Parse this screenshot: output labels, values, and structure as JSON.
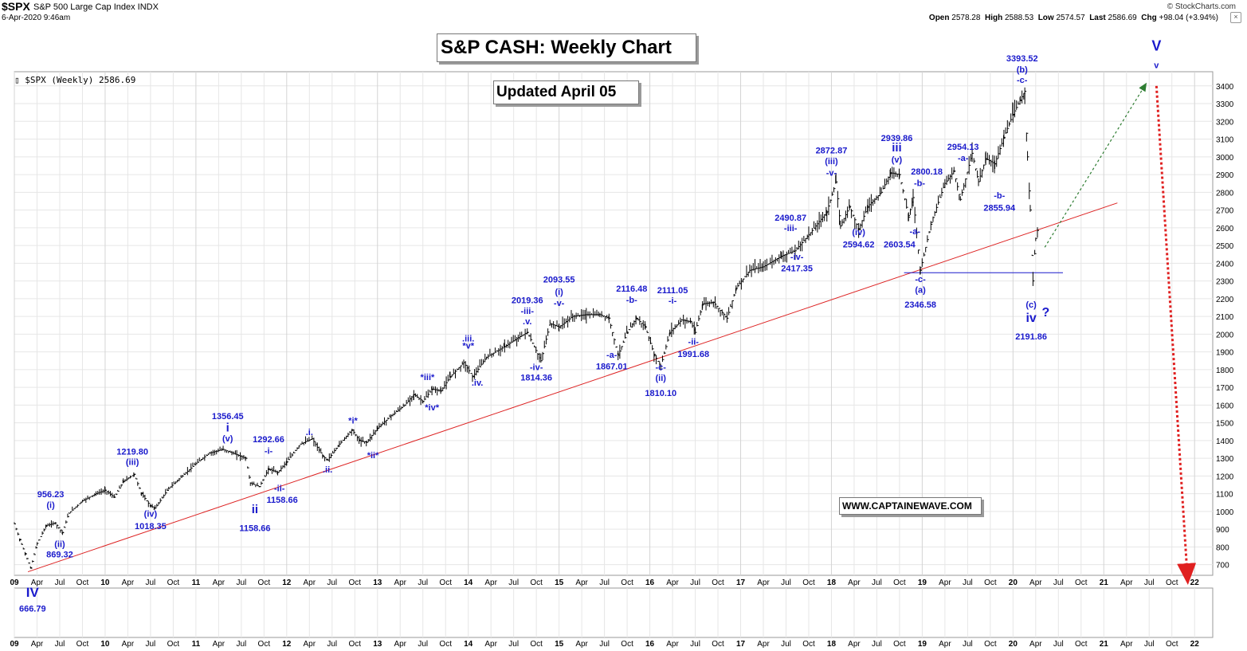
{
  "header": {
    "symbol": "$SPX",
    "name": "S&P 500 Large Cap Index INDX",
    "date": "6-Apr-2020 9:46am",
    "credit": "© StockCharts.com",
    "quote": {
      "open_label": "Open",
      "open": "2578.28",
      "high_label": "High",
      "high": "2588.53",
      "low_label": "Low",
      "low": "2574.57",
      "last_label": "Last",
      "last": "2586.69",
      "chg_label": "Chg",
      "chg": "+98.04 (+3.94%)"
    },
    "close_glyph": "×"
  },
  "legend": "$SPX (Weekly) 2586.69",
  "boxes": {
    "title": "S&P CASH: Weekly Chart",
    "updated": "Updated April 05",
    "website": "WWW.CAPTAINEWAVE.COM"
  },
  "colors": {
    "price": "#000000",
    "wave_label": "#1a1acc",
    "trendline": "#dd2222",
    "projection_up": "#2e7d32",
    "projection_down": "#e02020",
    "support": "#1a1acc",
    "grid": "#e6e6e6"
  },
  "chart_data": {
    "type": "ohlc",
    "series_name": "$SPX (Weekly)",
    "title": "S&P CASH: Weekly Chart",
    "ylim": [
      640,
      3480
    ],
    "y_ticks": [
      700,
      800,
      900,
      1000,
      1100,
      1200,
      1300,
      1400,
      1500,
      1600,
      1700,
      1800,
      1900,
      2000,
      2100,
      2200,
      2300,
      2400,
      2500,
      2600,
      2700,
      2800,
      2900,
      3000,
      3100,
      3200,
      3300,
      3400
    ],
    "xlim": [
      2009.0,
      2022.2
    ],
    "x_ticks": [
      {
        "t": 2009.0,
        "label": "09",
        "year": true
      },
      {
        "t": 2009.25,
        "label": "Apr"
      },
      {
        "t": 2009.5,
        "label": "Jul"
      },
      {
        "t": 2009.75,
        "label": "Oct"
      },
      {
        "t": 2010.0,
        "label": "10",
        "year": true
      },
      {
        "t": 2010.25,
        "label": "Apr"
      },
      {
        "t": 2010.5,
        "label": "Jul"
      },
      {
        "t": 2010.75,
        "label": "Oct"
      },
      {
        "t": 2011.0,
        "label": "11",
        "year": true
      },
      {
        "t": 2011.25,
        "label": "Apr"
      },
      {
        "t": 2011.5,
        "label": "Jul"
      },
      {
        "t": 2011.75,
        "label": "Oct"
      },
      {
        "t": 2012.0,
        "label": "12",
        "year": true
      },
      {
        "t": 2012.25,
        "label": "Apr"
      },
      {
        "t": 2012.5,
        "label": "Jul"
      },
      {
        "t": 2012.75,
        "label": "Oct"
      },
      {
        "t": 2013.0,
        "label": "13",
        "year": true
      },
      {
        "t": 2013.25,
        "label": "Apr"
      },
      {
        "t": 2013.5,
        "label": "Jul"
      },
      {
        "t": 2013.75,
        "label": "Oct"
      },
      {
        "t": 2014.0,
        "label": "14",
        "year": true
      },
      {
        "t": 2014.25,
        "label": "Apr"
      },
      {
        "t": 2014.5,
        "label": "Jul"
      },
      {
        "t": 2014.75,
        "label": "Oct"
      },
      {
        "t": 2015.0,
        "label": "15",
        "year": true
      },
      {
        "t": 2015.25,
        "label": "Apr"
      },
      {
        "t": 2015.5,
        "label": "Jul"
      },
      {
        "t": 2015.75,
        "label": "Oct"
      },
      {
        "t": 2016.0,
        "label": "16",
        "year": true
      },
      {
        "t": 2016.25,
        "label": "Apr"
      },
      {
        "t": 2016.5,
        "label": "Jul"
      },
      {
        "t": 2016.75,
        "label": "Oct"
      },
      {
        "t": 2017.0,
        "label": "17",
        "year": true
      },
      {
        "t": 2017.25,
        "label": "Apr"
      },
      {
        "t": 2017.5,
        "label": "Jul"
      },
      {
        "t": 2017.75,
        "label": "Oct"
      },
      {
        "t": 2018.0,
        "label": "18",
        "year": true
      },
      {
        "t": 2018.25,
        "label": "Apr"
      },
      {
        "t": 2018.5,
        "label": "Jul"
      },
      {
        "t": 2018.75,
        "label": "Oct"
      },
      {
        "t": 2019.0,
        "label": "19",
        "year": true
      },
      {
        "t": 2019.25,
        "label": "Apr"
      },
      {
        "t": 2019.5,
        "label": "Jul"
      },
      {
        "t": 2019.75,
        "label": "Oct"
      },
      {
        "t": 2020.0,
        "label": "20",
        "year": true
      },
      {
        "t": 2020.25,
        "label": "Apr"
      },
      {
        "t": 2020.5,
        "label": "Jul"
      },
      {
        "t": 2020.75,
        "label": "Oct"
      },
      {
        "t": 2021.0,
        "label": "21",
        "year": true
      },
      {
        "t": 2021.25,
        "label": "Apr"
      },
      {
        "t": 2021.5,
        "label": "Jul"
      },
      {
        "t": 2021.75,
        "label": "Oct"
      },
      {
        "t": 2022.0,
        "label": "22",
        "year": true
      }
    ],
    "price_path": [
      [
        2009.0,
        930
      ],
      [
        2009.06,
        840
      ],
      [
        2009.12,
        760
      ],
      [
        2009.18,
        680
      ],
      [
        2009.25,
        820
      ],
      [
        2009.35,
        920
      ],
      [
        2009.45,
        935
      ],
      [
        2009.53,
        880
      ],
      [
        2009.6,
        990
      ],
      [
        2009.75,
        1060
      ],
      [
        2009.9,
        1100
      ],
      [
        2010.0,
        1120
      ],
      [
        2010.1,
        1080
      ],
      [
        2010.2,
        1170
      ],
      [
        2010.32,
        1210
      ],
      [
        2010.4,
        1100
      ],
      [
        2010.5,
        1030
      ],
      [
        2010.55,
        1020
      ],
      [
        2010.7,
        1130
      ],
      [
        2010.85,
        1200
      ],
      [
        2011.0,
        1270
      ],
      [
        2011.15,
        1330
      ],
      [
        2011.3,
        1350
      ],
      [
        2011.45,
        1320
      ],
      [
        2011.55,
        1300
      ],
      [
        2011.6,
        1160
      ],
      [
        2011.7,
        1140
      ],
      [
        2011.8,
        1240
      ],
      [
        2011.9,
        1220
      ],
      [
        2012.0,
        1280
      ],
      [
        2012.15,
        1380
      ],
      [
        2012.28,
        1410
      ],
      [
        2012.4,
        1310
      ],
      [
        2012.45,
        1290
      ],
      [
        2012.58,
        1380
      ],
      [
        2012.72,
        1460
      ],
      [
        2012.8,
        1400
      ],
      [
        2012.88,
        1390
      ],
      [
        2013.0,
        1470
      ],
      [
        2013.15,
        1540
      ],
      [
        2013.3,
        1600
      ],
      [
        2013.4,
        1660
      ],
      [
        2013.5,
        1620
      ],
      [
        2013.6,
        1690
      ],
      [
        2013.7,
        1680
      ],
      [
        2013.8,
        1760
      ],
      [
        2013.95,
        1840
      ],
      [
        2014.05,
        1760
      ],
      [
        2014.2,
        1870
      ],
      [
        2014.4,
        1930
      ],
      [
        2014.55,
        1980
      ],
      [
        2014.65,
        2010
      ],
      [
        2014.8,
        1850
      ],
      [
        2014.9,
        2060
      ],
      [
        2015.0,
        2040
      ],
      [
        2015.15,
        2100
      ],
      [
        2015.3,
        2110
      ],
      [
        2015.45,
        2110
      ],
      [
        2015.55,
        2090
      ],
      [
        2015.65,
        1880
      ],
      [
        2015.75,
        2010
      ],
      [
        2015.85,
        2090
      ],
      [
        2015.95,
        2040
      ],
      [
        2016.05,
        1880
      ],
      [
        2016.12,
        1820
      ],
      [
        2016.22,
        2010
      ],
      [
        2016.35,
        2080
      ],
      [
        2016.45,
        2070
      ],
      [
        2016.5,
        2010
      ],
      [
        2016.58,
        2170
      ],
      [
        2016.7,
        2180
      ],
      [
        2016.85,
        2090
      ],
      [
        2016.95,
        2260
      ],
      [
        2017.1,
        2360
      ],
      [
        2017.25,
        2380
      ],
      [
        2017.45,
        2440
      ],
      [
        2017.6,
        2470
      ],
      [
        2017.75,
        2560
      ],
      [
        2017.95,
        2690
      ],
      [
        2018.05,
        2860
      ],
      [
        2018.1,
        2610
      ],
      [
        2018.2,
        2720
      ],
      [
        2018.3,
        2590
      ],
      [
        2018.4,
        2720
      ],
      [
        2018.55,
        2800
      ],
      [
        2018.65,
        2910
      ],
      [
        2018.75,
        2900
      ],
      [
        2018.85,
        2660
      ],
      [
        2018.9,
        2770
      ],
      [
        2018.98,
        2360
      ],
      [
        2019.1,
        2630
      ],
      [
        2019.25,
        2850
      ],
      [
        2019.35,
        2920
      ],
      [
        2019.42,
        2760
      ],
      [
        2019.55,
        3020
      ],
      [
        2019.62,
        2860
      ],
      [
        2019.7,
        2990
      ],
      [
        2019.8,
        2960
      ],
      [
        2019.9,
        3110
      ],
      [
        2020.0,
        3240
      ],
      [
        2020.08,
        3320
      ],
      [
        2020.13,
        3370
      ],
      [
        2020.16,
        3000
      ],
      [
        2020.19,
        2700
      ],
      [
        2020.22,
        2300
      ],
      [
        2020.25,
        2540
      ],
      [
        2020.27,
        2587
      ]
    ],
    "trendline": [
      [
        2009.15,
        660
      ],
      [
        2021.15,
        2740
      ]
    ],
    "support_line": {
      "x": [
        2018.8,
        2020.55
      ],
      "y": 2346.58
    },
    "projection_up": [
      [
        2020.35,
        2490
      ],
      [
        2021.45,
        3400
      ]
    ],
    "projection_down": [
      [
        2021.58,
        3400
      ],
      [
        2021.92,
        640
      ]
    ],
    "wave_notes": [
      {
        "t": 2009.2,
        "p": 600,
        "text": "IV",
        "size": 17
      },
      {
        "t": 2009.2,
        "p": 520,
        "text": "666.79"
      },
      {
        "t": 2009.4,
        "p": 1080,
        "text": "956.23"
      },
      {
        "t": 2009.4,
        "p": 1020,
        "text": "(i)"
      },
      {
        "t": 2009.5,
        "p": 800,
        "text": "(ii)"
      },
      {
        "t": 2009.5,
        "p": 740,
        "text": "869.32"
      },
      {
        "t": 2010.3,
        "p": 1320,
        "text": "1219.80"
      },
      {
        "t": 2010.3,
        "p": 1262,
        "text": "(iii)"
      },
      {
        "t": 2010.5,
        "p": 970,
        "text": "(iv)"
      },
      {
        "t": 2010.5,
        "p": 900,
        "text": "1018.35"
      },
      {
        "t": 2011.35,
        "p": 1520,
        "text": "1356.45"
      },
      {
        "t": 2011.35,
        "p": 1452,
        "text": "i",
        "size": 15
      },
      {
        "t": 2011.35,
        "p": 1395,
        "text": "(v)"
      },
      {
        "t": 2011.8,
        "p": 1390,
        "text": "1292.66"
      },
      {
        "t": 2011.8,
        "p": 1325,
        "text": "-i-"
      },
      {
        "t": 2011.92,
        "p": 1115,
        "text": "-ii-"
      },
      {
        "t": 2011.95,
        "p": 1050,
        "text": "1158.66"
      },
      {
        "t": 2011.65,
        "p": 990,
        "text": "ii",
        "size": 15
      },
      {
        "t": 2011.65,
        "p": 890,
        "text": "1158.66"
      },
      {
        "t": 2012.25,
        "p": 1430,
        "text": ".i."
      },
      {
        "t": 2012.45,
        "p": 1220,
        "text": ".ii."
      },
      {
        "t": 2012.73,
        "p": 1495,
        "text": "*i*"
      },
      {
        "t": 2012.95,
        "p": 1300,
        "text": "*ii*"
      },
      {
        "t": 2013.55,
        "p": 1740,
        "text": "*iii*"
      },
      {
        "t": 2013.6,
        "p": 1570,
        "text": "*iv*"
      },
      {
        "t": 2014.0,
        "p": 1960,
        "text": ".iii."
      },
      {
        "t": 2014.0,
        "p": 1918,
        "text": "*v*"
      },
      {
        "t": 2014.1,
        "p": 1710,
        "text": ".iv."
      },
      {
        "t": 2014.65,
        "p": 2175,
        "text": "2019.36"
      },
      {
        "t": 2014.65,
        "p": 2115,
        "text": "-iii-"
      },
      {
        "t": 2014.65,
        "p": 2055,
        "text": ".v."
      },
      {
        "t": 2015.0,
        "p": 2292,
        "text": "2093.55"
      },
      {
        "t": 2015.0,
        "p": 2222,
        "text": "(i)"
      },
      {
        "t": 2015.0,
        "p": 2158,
        "text": "-v-"
      },
      {
        "t": 2014.75,
        "p": 1798,
        "text": "-iv-"
      },
      {
        "t": 2014.75,
        "p": 1738,
        "text": "1814.36"
      },
      {
        "t": 2015.8,
        "p": 2240,
        "text": "2116.48"
      },
      {
        "t": 2015.8,
        "p": 2176,
        "text": "-b-"
      },
      {
        "t": 2015.58,
        "p": 1866,
        "text": "-a-"
      },
      {
        "t": 2015.58,
        "p": 1802,
        "text": "1867.01"
      },
      {
        "t": 2016.12,
        "p": 1796,
        "text": "-c-"
      },
      {
        "t": 2016.12,
        "p": 1736,
        "text": "(ii)"
      },
      {
        "t": 2016.12,
        "p": 1650,
        "text": "1810.10"
      },
      {
        "t": 2016.25,
        "p": 2230,
        "text": "2111.05"
      },
      {
        "t": 2016.25,
        "p": 2172,
        "text": "-i-"
      },
      {
        "t": 2016.48,
        "p": 1940,
        "text": "-ii-"
      },
      {
        "t": 2016.48,
        "p": 1872,
        "text": "1991.68"
      },
      {
        "t": 2017.55,
        "p": 2640,
        "text": "2490.87"
      },
      {
        "t": 2017.55,
        "p": 2582,
        "text": "-iii-"
      },
      {
        "t": 2017.62,
        "p": 2420,
        "text": "-iv-"
      },
      {
        "t": 2017.62,
        "p": 2355,
        "text": "2417.35"
      },
      {
        "t": 2018.0,
        "p": 3020,
        "text": "2872.87"
      },
      {
        "t": 2018.0,
        "p": 2958,
        "text": "(iii)"
      },
      {
        "t": 2018.0,
        "p": 2894,
        "text": "-v-"
      },
      {
        "t": 2018.3,
        "p": 2558,
        "text": "(iv)"
      },
      {
        "t": 2018.3,
        "p": 2490,
        "text": "2594.62"
      },
      {
        "t": 2018.72,
        "p": 3090,
        "text": "2939.86"
      },
      {
        "t": 2018.72,
        "p": 3030,
        "text": "iii",
        "size": 15
      },
      {
        "t": 2018.72,
        "p": 2968,
        "text": "(v)"
      },
      {
        "t": 2019.05,
        "p": 2900,
        "text": "2800.18"
      },
      {
        "t": 2018.97,
        "p": 2835,
        "text": "-b-"
      },
      {
        "t": 2018.92,
        "p": 2563,
        "text": "-a-"
      },
      {
        "t": 2018.75,
        "p": 2490,
        "text": "2603.54"
      },
      {
        "t": 2018.98,
        "p": 2294,
        "text": "-c-"
      },
      {
        "t": 2018.98,
        "p": 2234,
        "text": "(a)"
      },
      {
        "t": 2018.98,
        "p": 2150,
        "text": "2346.58"
      },
      {
        "t": 2019.45,
        "p": 3040,
        "text": "2954.13"
      },
      {
        "t": 2019.45,
        "p": 2977,
        "text": "-a-"
      },
      {
        "t": 2019.85,
        "p": 2765,
        "text": "-b-"
      },
      {
        "t": 2019.85,
        "p": 2695,
        "text": "2855.94"
      },
      {
        "t": 2020.1,
        "p": 3540,
        "text": "3393.52"
      },
      {
        "t": 2020.1,
        "p": 3475,
        "text": "(b)"
      },
      {
        "t": 2020.1,
        "p": 3418,
        "text": "-c-"
      },
      {
        "t": 2020.2,
        "p": 2150,
        "text": "(c)"
      },
      {
        "t": 2020.2,
        "p": 2070,
        "text": "iv",
        "size": 16
      },
      {
        "t": 2020.36,
        "p": 2100,
        "text": "?",
        "size": 16
      },
      {
        "t": 2020.2,
        "p": 1970,
        "text": "2191.86"
      },
      {
        "t": 2021.58,
        "p": 3600,
        "text": "V",
        "size": 18
      },
      {
        "t": 2021.58,
        "p": 3500,
        "text": "v"
      }
    ]
  }
}
